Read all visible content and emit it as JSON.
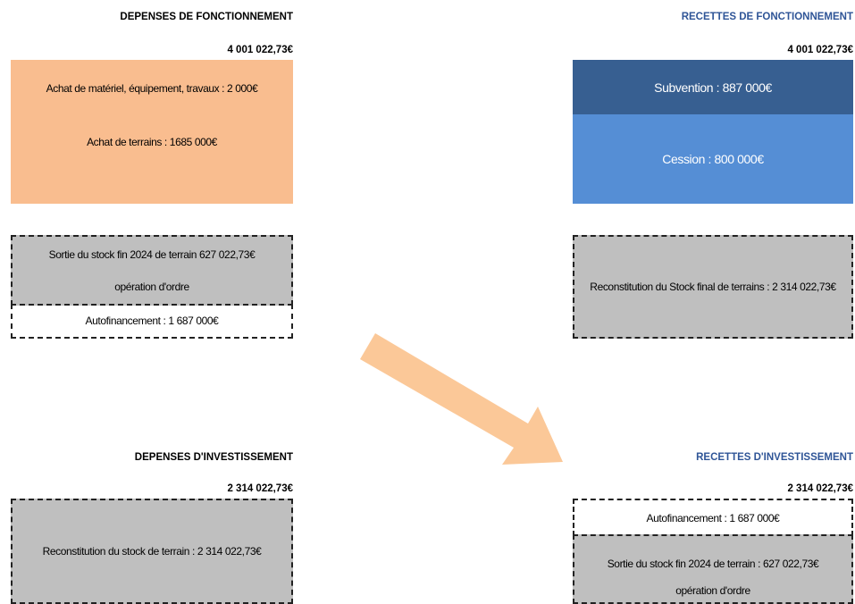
{
  "fonctionnement": {
    "depenses": {
      "title": "DEPENSES  DE FONCTIONNEMENT",
      "amount": "4 001 022,73€",
      "purchase_lines": [
        "Achat de matériel, équipement,  travaux : 2 000€",
        "Achat de terrains : 1685 000€"
      ],
      "stock_lines": [
        "Sortie du stock fin 2024 de terrain  627 022,73€",
        "opération  d'ordre"
      ],
      "autofinancement": "Autofinancement   : 1 687 000€"
    },
    "recettes": {
      "title": "RECETTES DE FONCTIONNEMENT",
      "amount": "4 001 022,73€",
      "subvention": "Subvention :  887 000€",
      "cession": "Cession : 800 000€",
      "stock": "Reconstitution  du Stock final de terrains : 2 314 022,73€"
    }
  },
  "investissement": {
    "depenses": {
      "title": "DEPENSES D'INVESTISSEMENT",
      "amount": "2 314 022,73€",
      "stock": "Reconstitution  du stock de terrain  : 2 314 022,73€"
    },
    "recettes": {
      "title": "RECETTES D'INVESTISSEMENT",
      "amount": "2 314 022,73€",
      "autofinancement": "Autofinancement   : 1 687 000€",
      "stock_lines": [
        "Sortie du stock fin 2024 de terrain   : 627 022,73€",
        "opération  d'ordre"
      ]
    }
  }
}
